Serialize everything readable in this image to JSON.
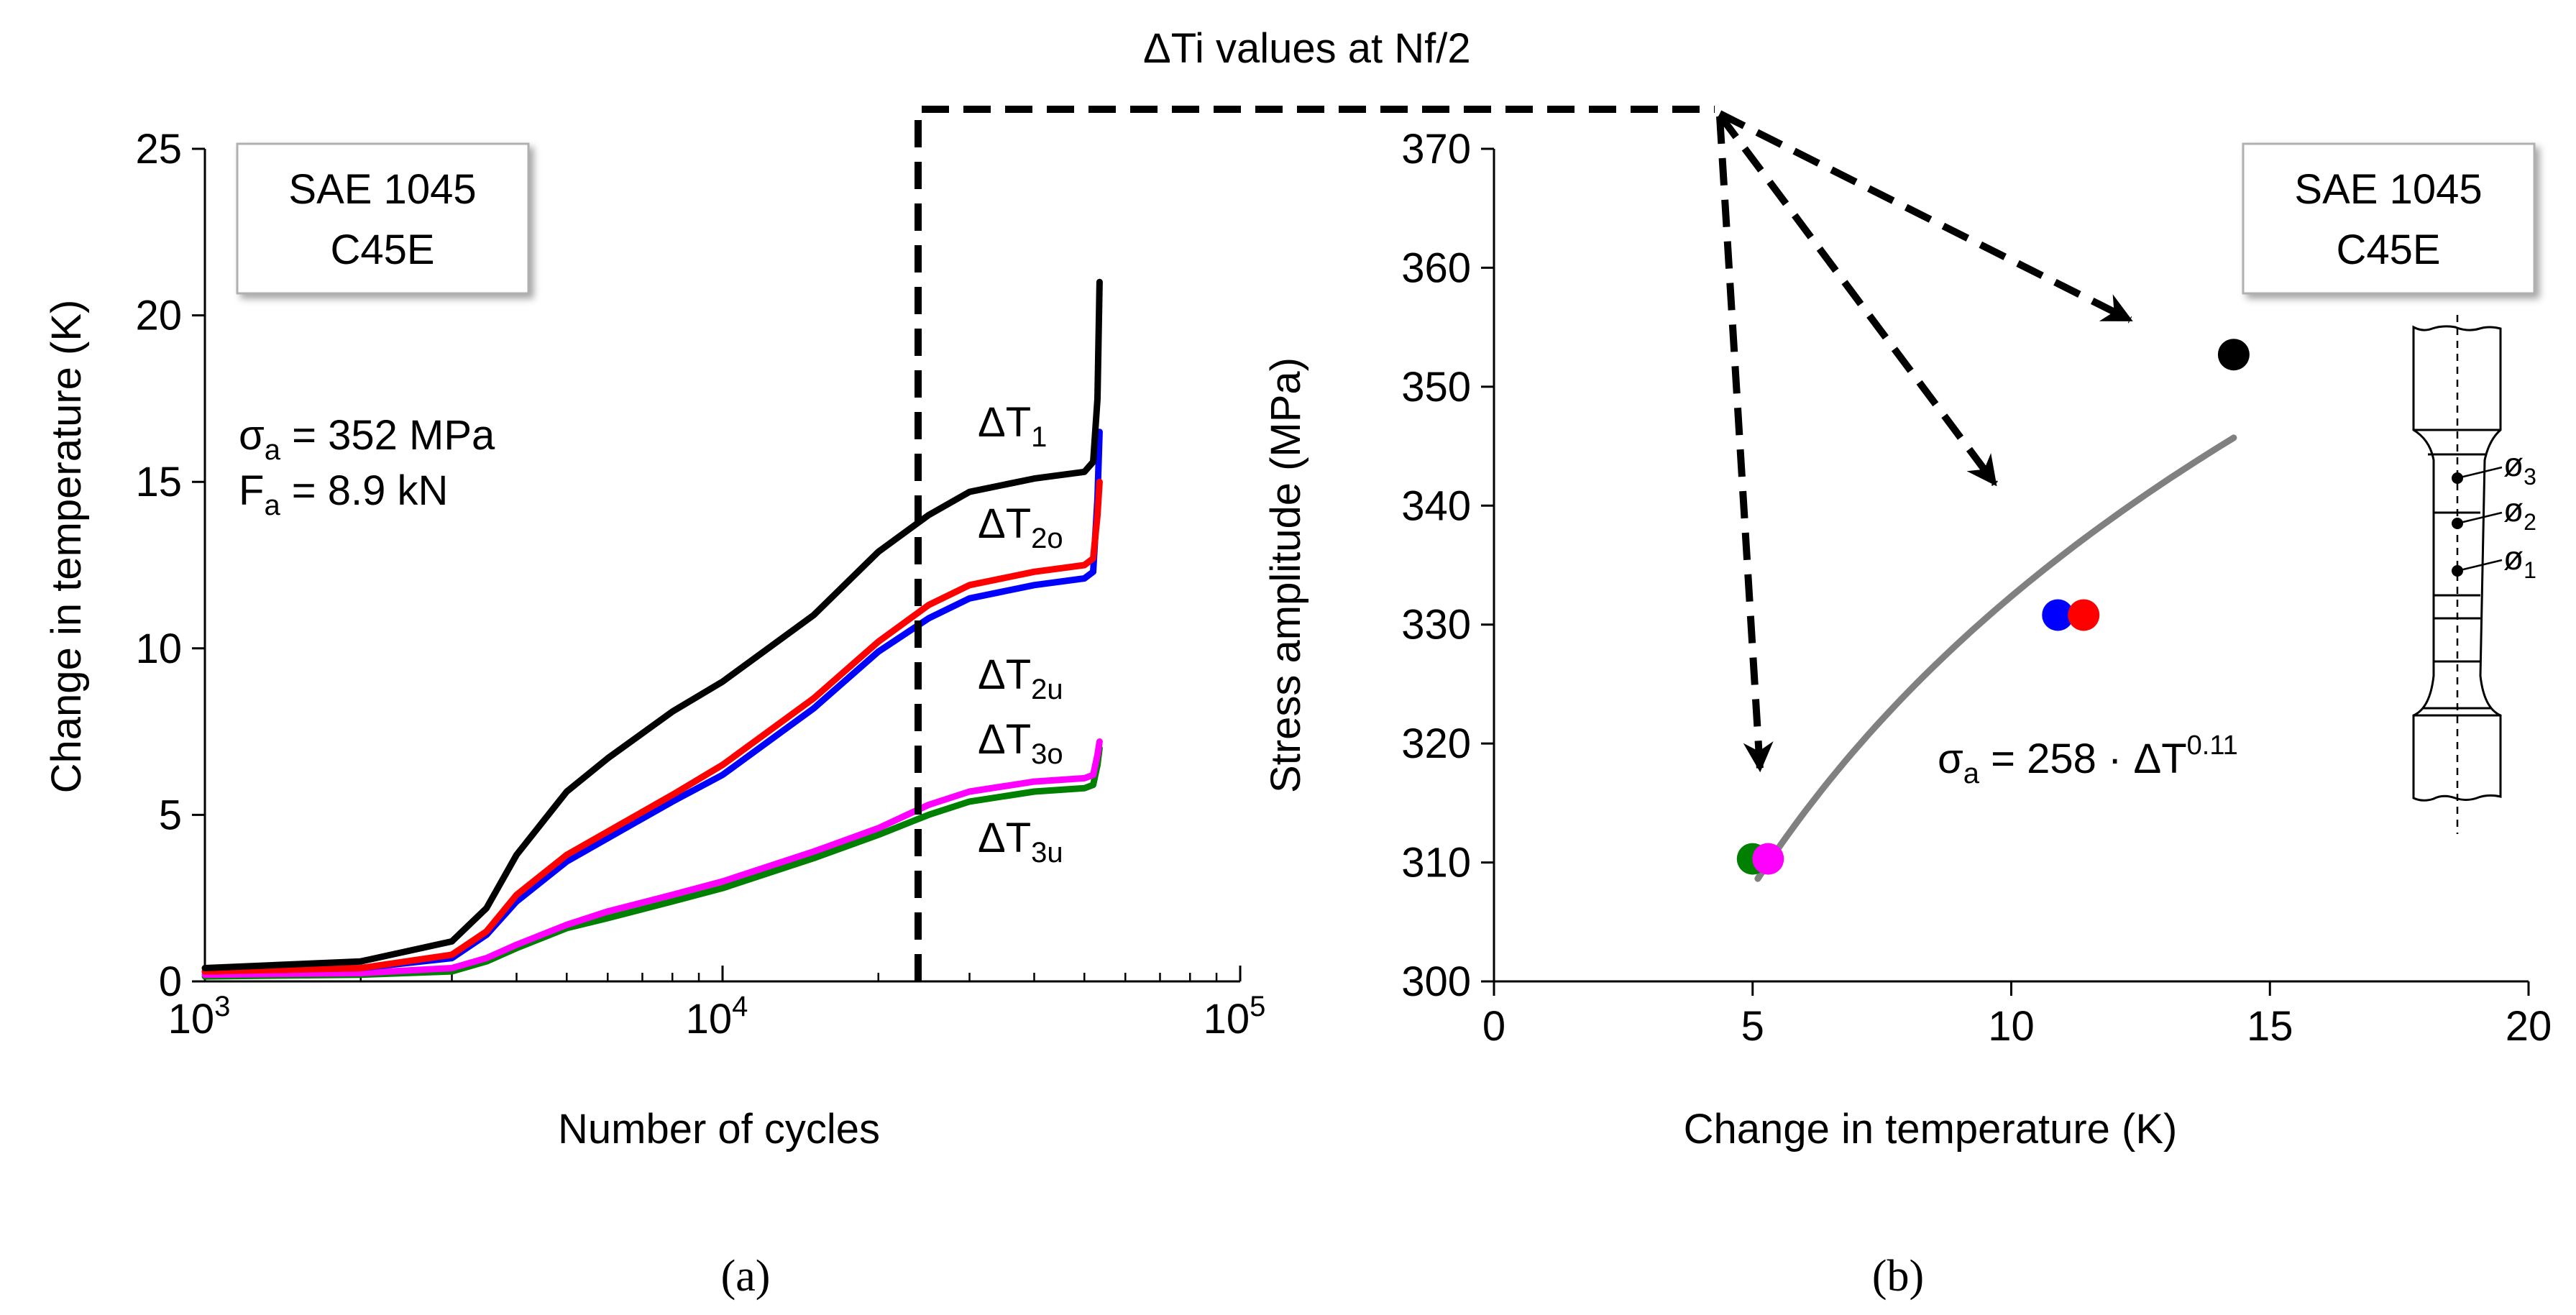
{
  "annotation": {
    "label": "ΔTi values at Nf/2"
  },
  "panel_labels": {
    "a": "(a)",
    "b": "(b)"
  },
  "chart_data": [
    {
      "type": "line",
      "xscale": "log",
      "title": "",
      "xlabel": "Number of cycles",
      "ylabel": "Change in temperature (K)",
      "xlim": [
        1000,
        100000
      ],
      "ylim": [
        0,
        25
      ],
      "xticks": [
        {
          "value": 1000,
          "base": "10",
          "exp": "3"
        },
        {
          "value": 10000,
          "base": "10",
          "exp": "4"
        },
        {
          "value": 100000,
          "base": "10",
          "exp": "5"
        }
      ],
      "yticks": [
        0,
        5,
        10,
        15,
        20,
        25
      ],
      "legend_box": {
        "line1": "SAE 1045",
        "line2": "C45E"
      },
      "conditions": [
        {
          "sym": "σ",
          "sub": "a",
          "text": " = 352 MPa"
        },
        {
          "sym": "F",
          "sub": "a",
          "text": " = 8.9 kN"
        }
      ],
      "nf_half_cycles": 24000,
      "series": [
        {
          "name": "ΔT1",
          "label": {
            "main": "ΔT",
            "sub": "1"
          },
          "color": "#000000",
          "x": [
            1000,
            2000,
            3000,
            3500,
            4000,
            5000,
            6000,
            8000,
            10000,
            15000,
            20000,
            25000,
            30000,
            40000,
            50000,
            52000,
            53000,
            53500
          ],
          "y": [
            0.4,
            0.6,
            1.2,
            2.2,
            3.8,
            5.7,
            6.7,
            8.1,
            9.0,
            11.0,
            12.9,
            14.0,
            14.7,
            15.1,
            15.3,
            15.6,
            17.5,
            21
          ]
        },
        {
          "name": "ΔT2o",
          "label": {
            "main": "ΔT",
            "sub": "2o"
          },
          "color": "#ff0000",
          "x": [
            1000,
            2000,
            3000,
            3500,
            4000,
            5000,
            6000,
            8000,
            10000,
            15000,
            20000,
            25000,
            30000,
            40000,
            50000,
            52000,
            53000,
            53500
          ],
          "y": [
            0.3,
            0.4,
            0.8,
            1.5,
            2.6,
            3.8,
            4.5,
            5.6,
            6.5,
            8.5,
            10.2,
            11.3,
            11.9,
            12.3,
            12.5,
            12.7,
            14.0,
            15.0
          ]
        },
        {
          "name": "ΔT2u",
          "label": {
            "main": "ΔT",
            "sub": "2u"
          },
          "color": "#0000ff",
          "x": [
            1000,
            2000,
            3000,
            3500,
            4000,
            5000,
            6000,
            8000,
            10000,
            15000,
            20000,
            25000,
            30000,
            40000,
            50000,
            52000,
            53000,
            53500
          ],
          "y": [
            0.3,
            0.4,
            0.7,
            1.4,
            2.4,
            3.6,
            4.3,
            5.4,
            6.2,
            8.2,
            9.9,
            10.9,
            11.5,
            11.9,
            12.1,
            12.3,
            14.5,
            16.5
          ]
        },
        {
          "name": "ΔT3o",
          "label": {
            "main": "ΔT",
            "sub": "3o"
          },
          "color": "#ff00ff",
          "x": [
            1000,
            2000,
            3000,
            3500,
            4000,
            5000,
            6000,
            8000,
            10000,
            15000,
            20000,
            25000,
            30000,
            40000,
            50000,
            52000,
            53000,
            53500
          ],
          "y": [
            0.2,
            0.25,
            0.4,
            0.7,
            1.1,
            1.7,
            2.1,
            2.6,
            3.0,
            3.9,
            4.6,
            5.3,
            5.7,
            6.0,
            6.1,
            6.2,
            6.8,
            7.2
          ]
        },
        {
          "name": "ΔT3u",
          "label": {
            "main": "ΔT",
            "sub": "3u"
          },
          "color": "#008000",
          "x": [
            1000,
            2000,
            3000,
            3500,
            4000,
            5000,
            6000,
            8000,
            10000,
            15000,
            20000,
            25000,
            30000,
            40000,
            50000,
            52000,
            53000,
            53500
          ],
          "y": [
            0.15,
            0.2,
            0.3,
            0.6,
            1.0,
            1.6,
            1.9,
            2.4,
            2.8,
            3.7,
            4.4,
            5.0,
            5.4,
            5.7,
            5.8,
            5.9,
            6.5,
            7.0
          ]
        }
      ]
    },
    {
      "type": "scatter",
      "title": "",
      "xlabel": "Change in temperature (K)",
      "ylabel": "Stress amplitude (MPa)",
      "xlim": [
        0,
        20
      ],
      "ylim": [
        300,
        370
      ],
      "xticks": [
        0,
        5,
        10,
        15,
        20
      ],
      "yticks": [
        300,
        310,
        320,
        330,
        340,
        350,
        360,
        370
      ],
      "legend_box": {
        "line1": "SAE 1045",
        "line2": "C45E"
      },
      "points": [
        {
          "name": "ΔT1",
          "x": 14.3,
          "y": 352.7,
          "color": "#000000"
        },
        {
          "name": "ΔT2u",
          "x": 10.9,
          "y": 330.8,
          "color": "#0000ff"
        },
        {
          "name": "ΔT2o",
          "x": 11.4,
          "y": 330.8,
          "color": "#ff0000"
        },
        {
          "name": "ΔT3u",
          "x": 5.0,
          "y": 310.3,
          "color": "#008000"
        },
        {
          "name": "ΔT3o",
          "x": 5.3,
          "y": 310.3,
          "color": "#ff00ff"
        }
      ],
      "fit": {
        "coef": 258,
        "exp": 0.11,
        "x_from": 5.1,
        "x_to": 14.3,
        "color": "#808080",
        "label": {
          "lhs": "σ",
          "lhs_sub": "a",
          "mid": " = 258 · ΔT",
          "sup": "0.11"
        }
      },
      "specimen_labels": [
        {
          "sym": "ø",
          "sub": "3"
        },
        {
          "sym": "ø",
          "sub": "2"
        },
        {
          "sym": "ø",
          "sub": "1"
        }
      ]
    }
  ]
}
